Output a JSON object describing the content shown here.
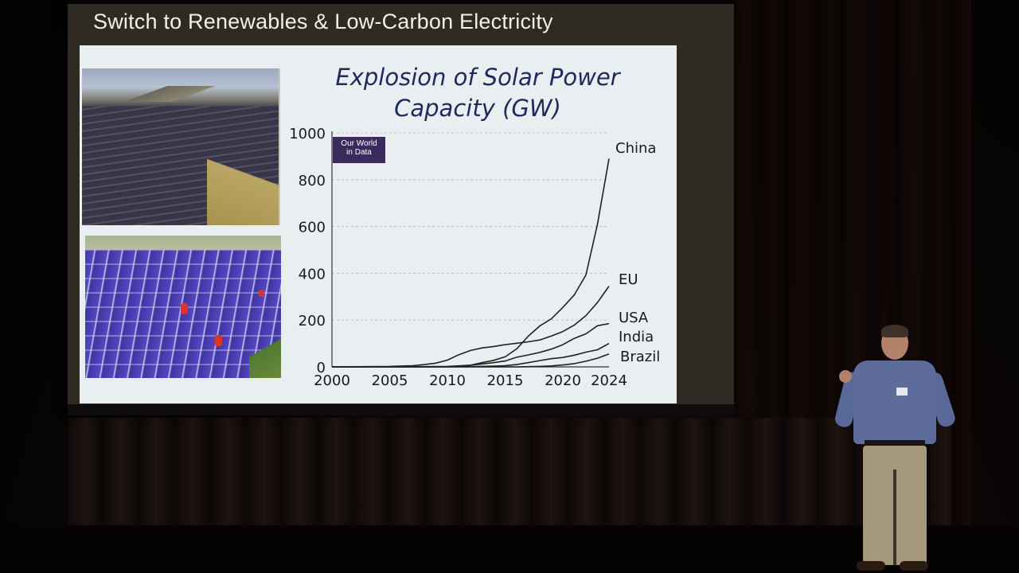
{
  "slide": {
    "title": "Switch to Renewables & Low-Carbon Electricity",
    "chart_title_line1": "Explosion of Solar Power",
    "chart_title_line2": "Capacity (GW)",
    "logo_line1": "Our World",
    "logo_line2": "in Data"
  },
  "chart_data": {
    "type": "line",
    "title": "Explosion of Solar Power Capacity (GW)",
    "xlabel": "",
    "ylabel": "",
    "x_ticks": [
      2000,
      2005,
      2010,
      2015,
      2020,
      2024
    ],
    "y_ticks": [
      0,
      200,
      400,
      600,
      800,
      1000
    ],
    "xlim": [
      2000,
      2024
    ],
    "ylim": [
      0,
      1000
    ],
    "grid": true,
    "series": [
      {
        "name": "China",
        "color": "#222222",
        "x": [
          2000,
          2005,
          2008,
          2010,
          2011,
          2012,
          2013,
          2014,
          2015,
          2016,
          2017,
          2018,
          2019,
          2020,
          2021,
          2022,
          2023,
          2024
        ],
        "y": [
          0,
          0,
          0,
          1,
          3,
          7,
          18,
          28,
          43,
          77,
          131,
          175,
          205,
          254,
          308,
          393,
          610,
          890
        ]
      },
      {
        "name": "EU",
        "color": "#222222",
        "x": [
          2000,
          2005,
          2007,
          2008,
          2009,
          2010,
          2011,
          2012,
          2013,
          2014,
          2015,
          2016,
          2017,
          2018,
          2019,
          2020,
          2021,
          2022,
          2023,
          2024
        ],
        "y": [
          0,
          2,
          5,
          10,
          16,
          29,
          52,
          70,
          81,
          87,
          95,
          101,
          107,
          115,
          132,
          151,
          179,
          219,
          275,
          345
        ]
      },
      {
        "name": "USA",
        "color": "#222222",
        "x": [
          2000,
          2005,
          2010,
          2012,
          2014,
          2015,
          2016,
          2017,
          2018,
          2019,
          2020,
          2021,
          2022,
          2023,
          2024
        ],
        "y": [
          0,
          0,
          2,
          7,
          18,
          25,
          41,
          51,
          62,
          76,
          95,
          122,
          141,
          176,
          185
        ]
      },
      {
        "name": "India",
        "color": "#222222",
        "x": [
          2000,
          2005,
          2010,
          2012,
          2014,
          2015,
          2016,
          2017,
          2018,
          2019,
          2020,
          2021,
          2022,
          2023,
          2024
        ],
        "y": [
          0,
          0,
          0,
          1,
          3,
          5,
          10,
          18,
          27,
          35,
          40,
          50,
          63,
          73,
          100
        ]
      },
      {
        "name": "Brazil",
        "color": "#222222",
        "x": [
          2000,
          2005,
          2010,
          2014,
          2016,
          2017,
          2018,
          2019,
          2020,
          2021,
          2022,
          2023,
          2024
        ],
        "y": [
          0,
          0,
          0,
          0,
          0,
          1,
          2,
          4,
          8,
          14,
          24,
          37,
          55
        ]
      }
    ]
  }
}
